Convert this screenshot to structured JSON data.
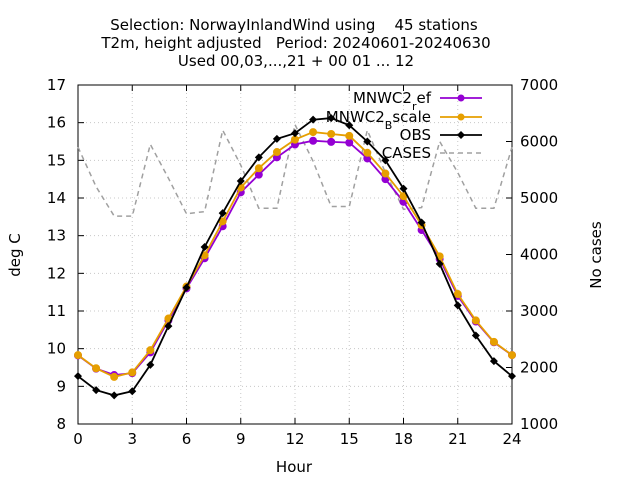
{
  "chart_data": {
    "type": "line",
    "title_lines": [
      "Selection: NorwayInlandWind using    45 stations",
      "T2m, height adjusted   Period: 20240601-20240630",
      "Used 00,03,...,21 + 00 01 ... 12"
    ],
    "xlabel": "Hour",
    "ylabel": "deg C",
    "y2label": "No cases",
    "xlim": [
      0,
      24
    ],
    "ylim": [
      8,
      17
    ],
    "y2lim": [
      1000,
      7000
    ],
    "x_ticks": [
      "0",
      "3",
      "6",
      "9",
      "12",
      "15",
      "18",
      "21",
      "24"
    ],
    "y_ticks": [
      "8",
      "9",
      "10",
      "11",
      "12",
      "13",
      "14",
      "15",
      "16",
      "17"
    ],
    "y2_ticks": [
      "1000",
      "2000",
      "3000",
      "4000",
      "5000",
      "6000",
      "7000"
    ],
    "x": [
      0,
      1,
      2,
      3,
      4,
      5,
      6,
      7,
      8,
      9,
      10,
      11,
      12,
      13,
      14,
      15,
      16,
      17,
      18,
      19,
      20,
      21,
      22,
      23,
      24
    ],
    "legend_position": "top-right",
    "series": [
      {
        "name": "MNWC2_ref",
        "legend_text": "MNWC2",
        "legend_sub": "r",
        "legend_suffix": "ef",
        "color": "#9400d3",
        "marker": "circle",
        "axis": "y",
        "dash": false,
        "values": [
          9.82,
          9.47,
          9.3,
          9.35,
          9.9,
          10.75,
          11.6,
          12.4,
          13.25,
          14.15,
          14.62,
          15.08,
          15.42,
          15.52,
          15.49,
          15.47,
          15.05,
          14.5,
          13.9,
          13.15,
          12.38,
          11.4,
          10.72,
          10.17,
          9.83
        ]
      },
      {
        "name": "MNWC2_Bscale",
        "legend_text": "MNWC2",
        "legend_sub": "B",
        "legend_suffix": "scale",
        "color": "#e69f00",
        "marker": "circle",
        "axis": "y",
        "dash": false,
        "values": [
          9.83,
          9.48,
          9.25,
          9.37,
          9.96,
          10.8,
          11.65,
          12.48,
          13.38,
          14.28,
          14.79,
          15.22,
          15.55,
          15.75,
          15.7,
          15.65,
          15.2,
          14.65,
          14.05,
          13.28,
          12.45,
          11.45,
          10.75,
          10.18,
          9.83
        ]
      },
      {
        "name": "OBS",
        "legend_text": "OBS",
        "legend_sub": "",
        "legend_suffix": "",
        "color": "#000000",
        "marker": "diamond",
        "axis": "y",
        "dash": false,
        "values": [
          9.27,
          8.9,
          8.76,
          8.87,
          9.57,
          10.6,
          11.62,
          12.7,
          13.6,
          14.45,
          15.08,
          15.57,
          15.72,
          16.08,
          16.12,
          15.93,
          15.5,
          15.0,
          14.25,
          13.35,
          12.25,
          11.15,
          10.35,
          9.67,
          9.27
        ]
      },
      {
        "name": "CASES",
        "legend_text": "CASES",
        "legend_sub": "",
        "legend_suffix": "",
        "color": "#a0a0a0",
        "marker": "none",
        "axis": "y2",
        "dash": true,
        "values": [
          5900,
          5200,
          4680,
          4680,
          5950,
          5350,
          4720,
          4760,
          6200,
          5580,
          4820,
          4820,
          6300,
          5650,
          4850,
          4850,
          6200,
          5450,
          4800,
          4830,
          6000,
          5450,
          4820,
          4820,
          5900
        ]
      }
    ]
  }
}
